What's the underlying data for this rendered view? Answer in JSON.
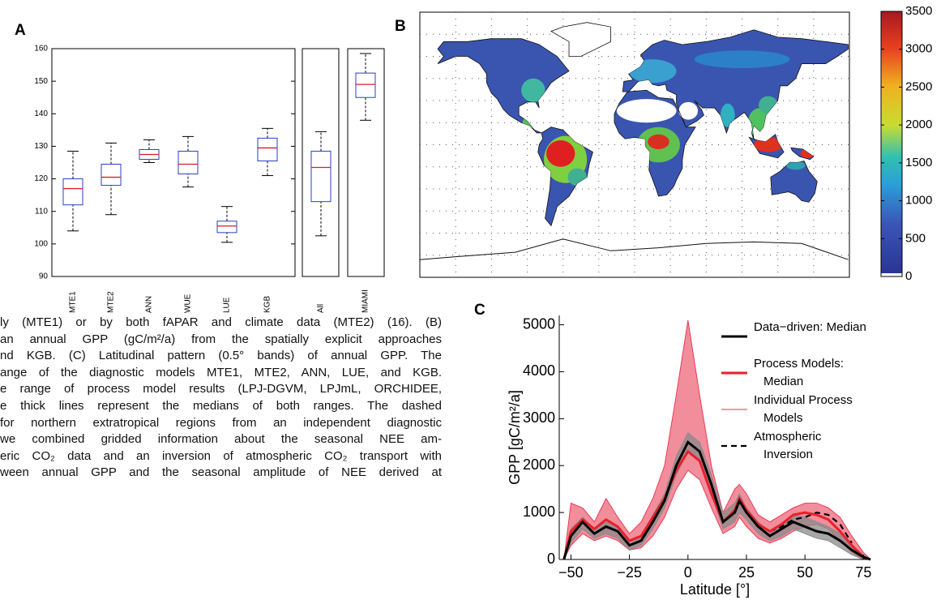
{
  "caption": [
    "ly (MTE1) or by both fAPAR and climate data (MTE2) (16). (B)",
    "an annual GPP (gC/m²/a) from the spatially explicit approaches",
    "nd KGB. (C) Latitudinal pattern (0.5° bands) of annual GPP. The",
    "ange of the diagnostic models MTE1, MTE2, ANN, LUE, and KGB.",
    "e range of process model results (LPJ-DGVM, LPJmL, ORCHIDEE,",
    "e thick lines represent the medians of both ranges. The dashed",
    "for northern extratropical regions from an independent diagnostic",
    "we combined gridded information about the seasonal NEE am-",
    "eric CO₂ data and an inversion of atmospheric CO₂ transport with",
    "ween annual GPP and the seasonal amplitude of NEE derived at"
  ],
  "chart_data": [
    {
      "type": "box",
      "label": "A",
      "categories": [
        "MTE1",
        "MTE2",
        "ANN",
        "WUE",
        "LUE",
        "KGB",
        "All",
        "MIAMI"
      ],
      "values": [
        [
          104,
          112,
          117,
          120,
          128.5
        ],
        [
          109,
          118,
          120.5,
          124.5,
          131
        ],
        [
          125,
          126,
          127.5,
          129,
          132
        ],
        [
          117.5,
          121.5,
          124.5,
          128.5,
          133
        ],
        [
          100.5,
          103.5,
          105.5,
          107,
          111.5
        ],
        [
          121,
          125.5,
          129.5,
          132.5,
          135.5
        ],
        [
          102.5,
          113,
          123.5,
          128.5,
          134.5
        ],
        [
          138,
          145,
          149,
          152.5,
          158.5
        ]
      ],
      "color": "#2b3fbf",
      "median_color": "#e0182d",
      "ylim": [
        90,
        160
      ],
      "yticks": [
        90,
        100,
        110,
        120,
        130,
        140,
        150,
        160
      ]
    },
    {
      "type": "map",
      "label": "B",
      "ylim": [
        0,
        3500
      ],
      "yticks": [
        0,
        500,
        1000,
        1500,
        2000,
        2500,
        3000,
        3500
      ]
    },
    {
      "type": "line",
      "label": "C",
      "xlabel": "Latitude [°]",
      "ylabel": "GPP [gC/m²/a]",
      "x": [
        -53,
        -50,
        -45,
        -40,
        -35,
        -30,
        -25,
        -20,
        -15,
        -10,
        -5,
        0,
        5,
        10,
        15,
        20,
        22,
        25,
        30,
        35,
        40,
        45,
        50,
        55,
        60,
        65,
        70,
        75,
        78
      ],
      "xlim": [
        -55,
        78
      ],
      "xticks": [
        {
          "value": -50,
          "label": "−50"
        },
        {
          "value": -25,
          "label": "−25"
        },
        0,
        25,
        50,
        75
      ],
      "ylim": [
        0,
        5200
      ],
      "yticks": [
        0,
        1000,
        2000,
        3000,
        4000,
        5000
      ],
      "legend": "upper right",
      "series": [
        {
          "name": "Data−driven: Median",
          "color": "#000000",
          "values": [
            0,
            500,
            800,
            550,
            700,
            600,
            300,
            400,
            800,
            1250,
            2000,
            2500,
            2300,
            1600,
            800,
            1000,
            1250,
            1000,
            700,
            500,
            650,
            800,
            700,
            600,
            550,
            400,
            200,
            50,
            0
          ]
        },
        {
          "name": "Process Models: Median",
          "color": "#e8202a",
          "values": [
            0,
            600,
            850,
            650,
            850,
            700,
            400,
            500,
            900,
            1300,
            1900,
            2300,
            2100,
            1400,
            800,
            1050,
            1300,
            1050,
            750,
            600,
            750,
            950,
            1000,
            950,
            850,
            600,
            300,
            50,
            0
          ]
        },
        {
          "name": "Individual Process Models",
          "color": "#e8304a",
          "values": [
            0,
            1200,
            1100,
            800,
            1300,
            900,
            550,
            800,
            1300,
            2000,
            3500,
            5100,
            3500,
            2000,
            1000,
            1500,
            1600,
            1400,
            950,
            800,
            950,
            1100,
            1200,
            1200,
            1100,
            900,
            500,
            150,
            0
          ],
          "lower": [
            0,
            300,
            550,
            400,
            500,
            400,
            200,
            250,
            500,
            900,
            1500,
            1900,
            1700,
            1100,
            550,
            700,
            900,
            700,
            450,
            350,
            450,
            600,
            700,
            750,
            650,
            400,
            150,
            0,
            0
          ]
        },
        {
          "name": "Atmospheric Inversion",
          "color": "#000000",
          "dash": true,
          "values": [
            null,
            null,
            null,
            null,
            null,
            null,
            null,
            null,
            null,
            null,
            null,
            null,
            null,
            null,
            null,
            null,
            null,
            null,
            null,
            600,
            700,
            850,
            900,
            1000,
            950,
            750,
            350,
            null,
            null
          ]
        },
        {
          "color": "#8a8a8a",
          "values": [
            0,
            650,
            900,
            650,
            800,
            700,
            400,
            500,
            950,
            1400,
            2200,
            2700,
            2500,
            1800,
            1000,
            1200,
            1400,
            1100,
            800,
            600,
            750,
            950,
            900,
            800,
            700,
            550,
            300,
            100,
            0
          ],
          "lower": [
            0,
            350,
            650,
            450,
            550,
            450,
            200,
            300,
            650,
            1100,
            1800,
            2300,
            2100,
            1400,
            650,
            800,
            1000,
            850,
            550,
            400,
            500,
            650,
            550,
            450,
            400,
            250,
            100,
            0,
            0
          ]
        }
      ]
    }
  ]
}
